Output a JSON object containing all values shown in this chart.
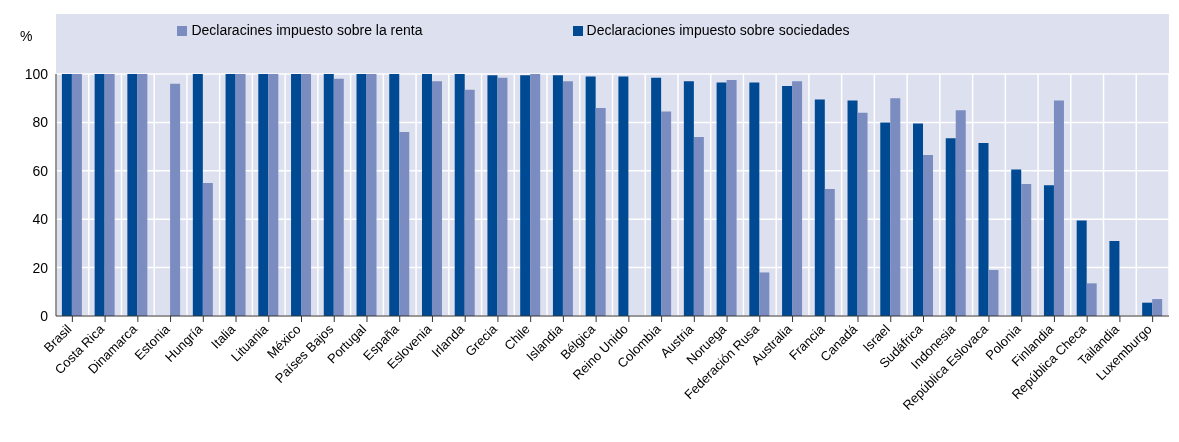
{
  "chart_data": {
    "type": "bar",
    "ylabel": "%",
    "categories": [
      "Brasil",
      "Costa Rica",
      "Dinamarca",
      "Estonia",
      "Hungría",
      "Italia",
      "Lituania",
      "México",
      "Países Bajos",
      "Portugal",
      "España",
      "Eslovenia",
      "Irlanda",
      "Grecia",
      "Chile",
      "Islandia",
      "Bélgica",
      "Reino Unido",
      "Colombia",
      "Austria",
      "Noruega",
      "Federación Rusa",
      "Australia",
      "Francia",
      "Canadá",
      "Israel",
      "Sudáfrica",
      "Indonesia",
      "República Eslovaca",
      "Polonia",
      "Finlandia",
      "República Checa",
      "Tailandia",
      "Luxemburgo"
    ],
    "series": [
      {
        "name": "Declaraciones impuesto sobre sociedades",
        "color": "#004a93",
        "values": [
          100,
          100,
          100,
          null,
          100,
          100,
          100,
          100,
          100,
          100,
          100,
          100,
          100,
          99.5,
          99.5,
          99.5,
          99,
          99,
          98.5,
          97,
          96.5,
          96.5,
          95,
          89.5,
          89,
          80,
          79.5,
          73.5,
          71.5,
          60.5,
          54,
          39.5,
          31,
          5.5
        ]
      },
      {
        "name": "Declaracines impuesto sobre la renta",
        "color": "#7b8cc0",
        "values": [
          100,
          100,
          100,
          96,
          55,
          100,
          100,
          100,
          98,
          100,
          76,
          97,
          93.5,
          98.5,
          100,
          97,
          86,
          null,
          84.5,
          74,
          97.5,
          18,
          97,
          52.5,
          84,
          90,
          66.5,
          85,
          19,
          54.5,
          89,
          13.5,
          null,
          7
        ]
      }
    ],
    "ylim": [
      0,
      100
    ],
    "yticks": [
      0,
      20,
      40,
      60,
      80,
      100
    ],
    "grid": true,
    "legend": "top"
  }
}
